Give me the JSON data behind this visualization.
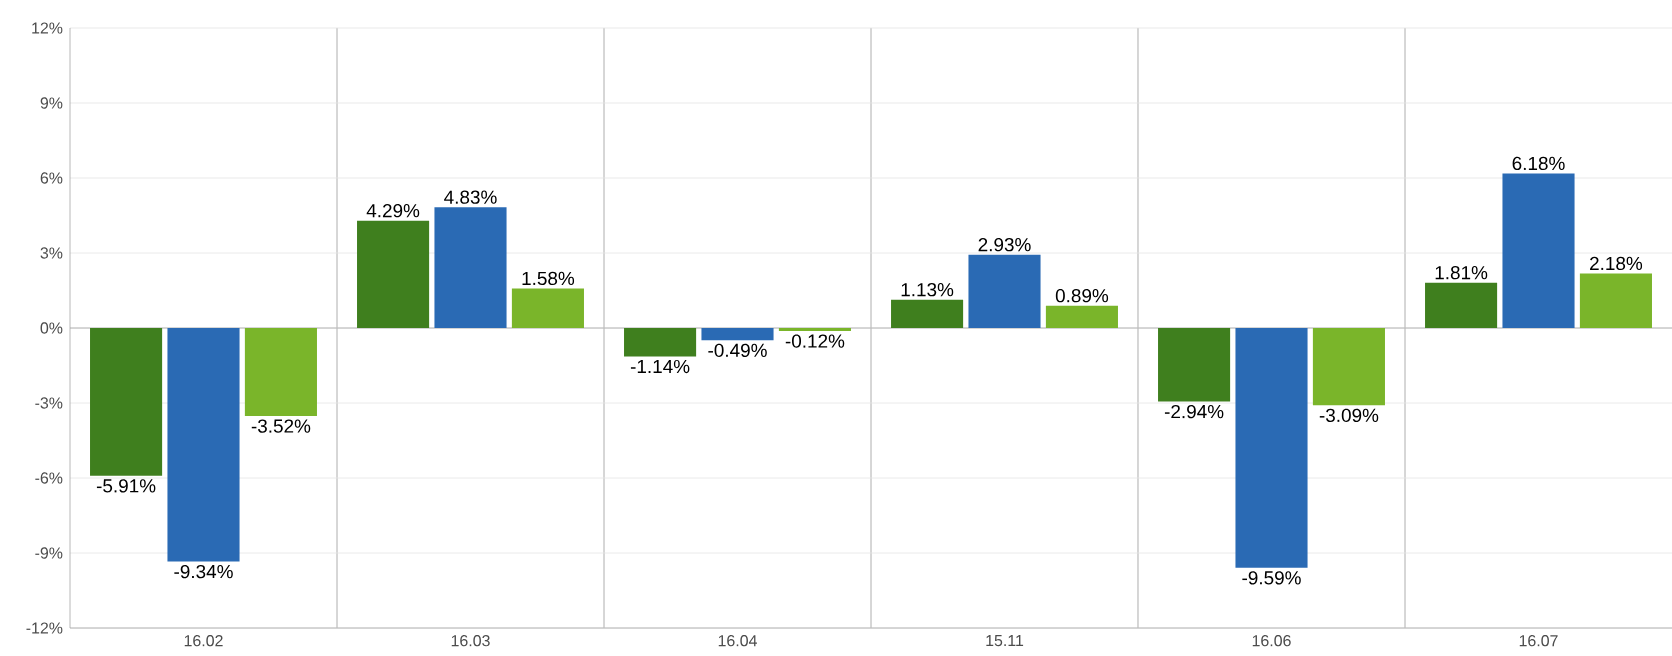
{
  "chart_data": {
    "type": "bar",
    "categories": [
      "16.02",
      "16.03",
      "16.04",
      "15.11",
      "16.06",
      "16.07"
    ],
    "series": [
      {
        "color": "#3f7f1e",
        "values": [
          -5.91,
          4.29,
          -1.14,
          1.13,
          -2.94,
          1.81
        ],
        "value_labels": [
          "-5.91%",
          "4.29%",
          "-1.14%",
          "1.13%",
          "-2.94%",
          "1.81%"
        ]
      },
      {
        "color": "#2a6ab4",
        "values": [
          -9.34,
          4.83,
          -0.49,
          2.93,
          -9.59,
          6.18
        ],
        "value_labels": [
          "-9.34%",
          "4.83%",
          "-0.49%",
          "2.93%",
          "-9.59%",
          "6.18%"
        ]
      },
      {
        "color": "#7ab52a",
        "values": [
          -3.52,
          1.58,
          -0.12,
          0.89,
          -3.09,
          2.18
        ],
        "value_labels": [
          "-3.52%",
          "1.58%",
          "-0.12%",
          "0.89%",
          "-3.09%",
          "2.18%"
        ]
      }
    ],
    "ylim": [
      -12,
      12
    ],
    "yticks": [
      {
        "value": -12,
        "label": "-12%"
      },
      {
        "value": -9,
        "label": "-9%"
      },
      {
        "value": -6,
        "label": "-6%"
      },
      {
        "value": -3,
        "label": "-3%"
      },
      {
        "value": 0,
        "label": "0%"
      },
      {
        "value": 3,
        "label": "3%"
      },
      {
        "value": 6,
        "label": "6%"
      },
      {
        "value": 9,
        "label": "9%"
      },
      {
        "value": 12,
        "label": "12%"
      }
    ],
    "grid": "y"
  }
}
